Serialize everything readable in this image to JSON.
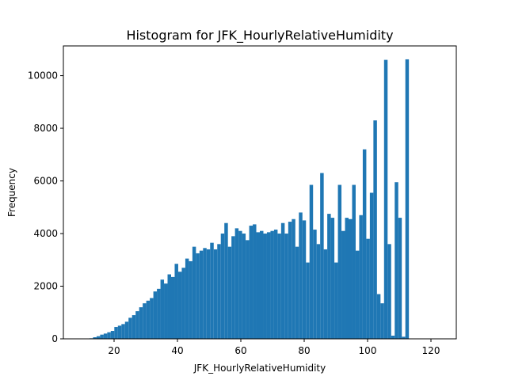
{
  "chart_data": {
    "type": "bar",
    "title": "Histogram for JFK_HourlyRelativeHumidity",
    "xlabel": "JFK_HourlyRelativeHumidity",
    "ylabel": "Frequency",
    "xlim": [
      4,
      128
    ],
    "ylim": [
      0,
      11130
    ],
    "xticks": [
      20,
      40,
      60,
      80,
      100,
      120
    ],
    "yticks": [
      0,
      2000,
      4000,
      6000,
      8000,
      10000
    ],
    "bar_color": "#1f77b4",
    "bin_width": 1.12,
    "bin_start": 10,
    "values": [
      0,
      0,
      20,
      60,
      100,
      160,
      200,
      250,
      300,
      450,
      500,
      560,
      650,
      800,
      900,
      1050,
      1200,
      1350,
      1450,
      1550,
      1800,
      1900,
      2250,
      2100,
      2450,
      2350,
      2850,
      2550,
      2700,
      3050,
      2950,
      3500,
      3250,
      3350,
      3450,
      3400,
      3650,
      3400,
      3600,
      4000,
      4400,
      3500,
      3900,
      4200,
      4100,
      4000,
      3750,
      4300,
      4350,
      4050,
      4100,
      4000,
      4050,
      4100,
      4150,
      4000,
      4400,
      4000,
      4450,
      4550,
      3500,
      4800,
      4500,
      2900,
      5850,
      4150,
      3600,
      6300,
      3400,
      4750,
      4600,
      2900,
      5850,
      4100,
      4600,
      4550,
      5850,
      3350,
      4700,
      7200,
      3800,
      5550,
      8300,
      1700,
      1350,
      10600,
      3600,
      120,
      5950,
      4600,
      80,
      10620
    ]
  }
}
